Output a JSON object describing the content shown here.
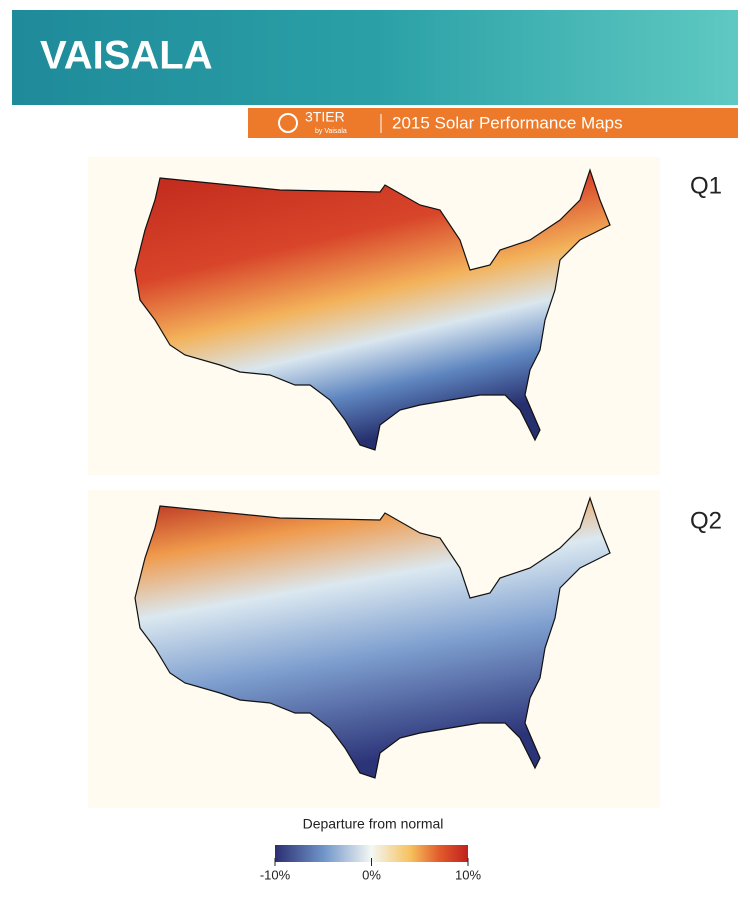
{
  "header": {
    "brand": "VAISALA",
    "logo_text": "3TIER",
    "logo_sub": "by Vaisala",
    "title": "2015 Solar Performance Maps"
  },
  "maps": [
    {
      "label": "Q1"
    },
    {
      "label": "Q2"
    }
  ],
  "legend": {
    "title": "Departure from normal",
    "range": [
      -10,
      10
    ],
    "ticks": [
      {
        "value": -10,
        "label": "-10%"
      },
      {
        "value": 0,
        "label": "0%"
      },
      {
        "value": 10,
        "label": "10%"
      }
    ]
  }
}
